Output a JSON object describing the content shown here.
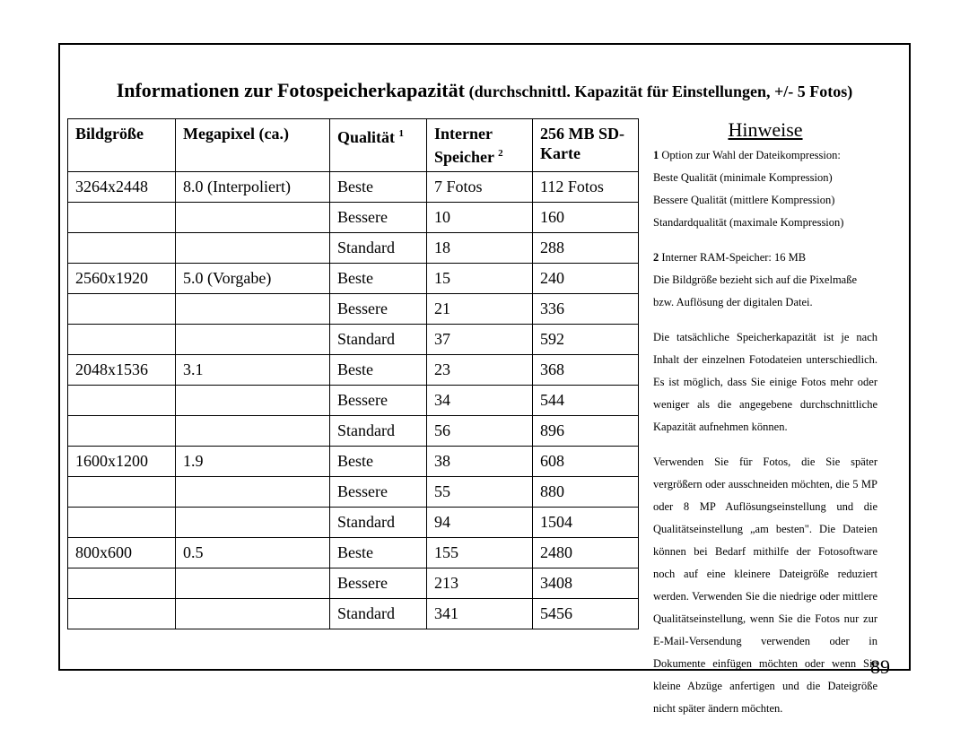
{
  "title": {
    "main": "Informationen zur Fotospeicherkapazität",
    "sub": "(durchschnittl. Kapazität für Einstellungen, +/- 5 Fotos)"
  },
  "table": {
    "columns": {
      "c0": "Bildgröße",
      "c1": "Megapixel (ca.)",
      "c2": "Qualität",
      "c2_sup": "1",
      "c3": "Interner Speicher",
      "c3_sup": "2",
      "c4": "256 MB SD-Karte"
    },
    "widths": [
      "120px",
      "170px",
      "105px",
      "120px",
      "120px"
    ],
    "rows": [
      {
        "size": "3264x2448",
        "mp": "8.0 (Interpoliert)",
        "q": "Beste",
        "intl": "7 Fotos",
        "sd": "112 Fotos"
      },
      {
        "size": "",
        "mp": "",
        "q": "Bessere",
        "intl": "10",
        "sd": "160"
      },
      {
        "size": "",
        "mp": "",
        "q": "Standard",
        "intl": "18",
        "sd": "288"
      },
      {
        "size": "2560x1920",
        "mp": "5.0 (Vorgabe)",
        "q": "Beste",
        "intl": "15",
        "sd": "240"
      },
      {
        "size": "",
        "mp": "",
        "q": "Bessere",
        "intl": "21",
        "sd": "336"
      },
      {
        "size": "",
        "mp": "",
        "q": "Standard",
        "intl": "37",
        "sd": "592"
      },
      {
        "size": "2048x1536",
        "mp": "3.1",
        "q": "Beste",
        "intl": "23",
        "sd": "368"
      },
      {
        "size": "",
        "mp": "",
        "q": "Bessere",
        "intl": "34",
        "sd": "544"
      },
      {
        "size": "",
        "mp": "",
        "q": "Standard",
        "intl": "56",
        "sd": "896"
      },
      {
        "size": "1600x1200",
        "mp": "1.9",
        "q": "Beste",
        "intl": "38",
        "sd": "608"
      },
      {
        "size": "",
        "mp": "",
        "q": "Bessere",
        "intl": "55",
        "sd": "880"
      },
      {
        "size": "",
        "mp": "",
        "q": "Standard",
        "intl": "94",
        "sd": "1504"
      },
      {
        "size": "800x600",
        "mp": "0.5",
        "q": "Beste",
        "intl": "155",
        "sd": "2480"
      },
      {
        "size": "",
        "mp": "",
        "q": "Bessere",
        "intl": "213",
        "sd": "3408"
      },
      {
        "size": "",
        "mp": "",
        "q": "Standard",
        "intl": "341",
        "sd": "5456"
      }
    ]
  },
  "notes": {
    "heading": "Hinweise",
    "fn1_num": "1",
    "fn1_l1": " Option zur Wahl der Dateikompression:",
    "fn1_l2": "Beste Qualität (minimale Kompression)",
    "fn1_l3": "Bessere Qualität (mittlere Kompression)",
    "fn1_l4": "Standardqualität (maximale Kompression)",
    "fn2_num": "2",
    "fn2_l1": " Interner RAM-Speicher: 16 MB",
    "fn2_l2": "Die Bildgröße bezieht sich auf die Pixelmaße bzw. Auflösung der digitalen Datei.",
    "p1": "Die tatsächliche Speicherkapazität ist je nach Inhalt der einzelnen Fotodateien unterschiedlich. Es ist möglich, dass Sie einige Fotos mehr oder weniger als die angegebene durchschnittliche Kapazität aufnehmen können.",
    "p2": "Verwenden Sie für Fotos, die Sie später vergrößern oder ausschneiden möchten, die 5 MP oder 8 MP Auflösungseinstellung und die Qualitätseinstellung „am besten\". Die Dateien können bei Bedarf mithilfe der Fotosoftware noch auf eine kleinere Dateigröße reduziert werden. Verwenden Sie die niedrige oder mittlere Qualitätseinstellung, wenn Sie die Fotos nur zur E-Mail-Versendung verwenden oder in Dokumente einfügen möchten oder wenn Sie kleine Abzüge anfertigen und die Dateigröße nicht später ändern möchten."
  },
  "page_number": "89"
}
